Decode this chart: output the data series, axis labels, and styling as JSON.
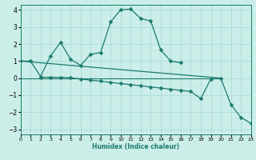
{
  "xlabel": "Humidex (Indice chaleur)",
  "bg_color": "#cceee8",
  "grid_color": "#aaddd8",
  "line_color": "#1a7a6e",
  "xlim": [
    0,
    23
  ],
  "ylim": [
    -3.3,
    4.3
  ],
  "xticks": [
    0,
    1,
    2,
    3,
    4,
    5,
    6,
    7,
    8,
    9,
    10,
    11,
    12,
    13,
    14,
    15,
    16,
    17,
    18,
    19,
    20,
    21,
    22,
    23
  ],
  "yticks": [
    -3,
    -2,
    -1,
    0,
    1,
    2,
    3,
    4
  ],
  "line1_x": [
    0,
    1,
    2,
    3,
    4,
    5,
    6,
    7,
    8,
    9,
    10,
    11,
    12,
    13,
    14,
    15,
    16
  ],
  "line1_y": [
    1.0,
    1.0,
    0.1,
    1.3,
    2.1,
    1.1,
    0.75,
    1.4,
    1.5,
    3.3,
    4.0,
    4.05,
    3.5,
    3.35,
    1.65,
    1.0,
    0.9
  ],
  "line2_x": [
    2,
    3,
    4,
    5,
    6,
    7,
    8,
    9,
    10,
    11,
    12,
    13,
    14,
    15,
    16,
    17,
    18,
    19,
    20,
    21,
    22,
    23
  ],
  "line2_y": [
    0.05,
    0.05,
    0.05,
    0.02,
    -0.05,
    -0.12,
    -0.18,
    -0.25,
    -0.32,
    -0.38,
    -0.45,
    -0.52,
    -0.58,
    -0.65,
    -0.72,
    -0.78,
    -1.2,
    -0.05,
    0.0,
    -1.55,
    -2.3,
    -2.65
  ],
  "line3_x": [
    0,
    20
  ],
  "line3_y": [
    1.0,
    0.0
  ]
}
